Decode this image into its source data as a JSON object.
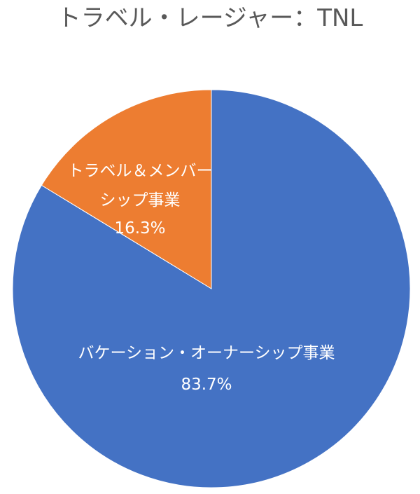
{
  "chart_data": {
    "type": "pie",
    "title": "トラベル・レージャー：TNL",
    "slices": [
      {
        "name": "バケーション・オーナーシップ事業",
        "value": 83.7,
        "label": "83.7%",
        "color": "#4472C4"
      },
      {
        "name": "トラベル＆メンバーシップ事業",
        "name_lines": [
          "トラベル＆メンバー",
          "シップ事業"
        ],
        "value": 16.3,
        "label": "16.3%",
        "color": "#ED7D31"
      }
    ],
    "start_angle": "12 o'clock",
    "direction": "clockwise",
    "legend": "none"
  }
}
